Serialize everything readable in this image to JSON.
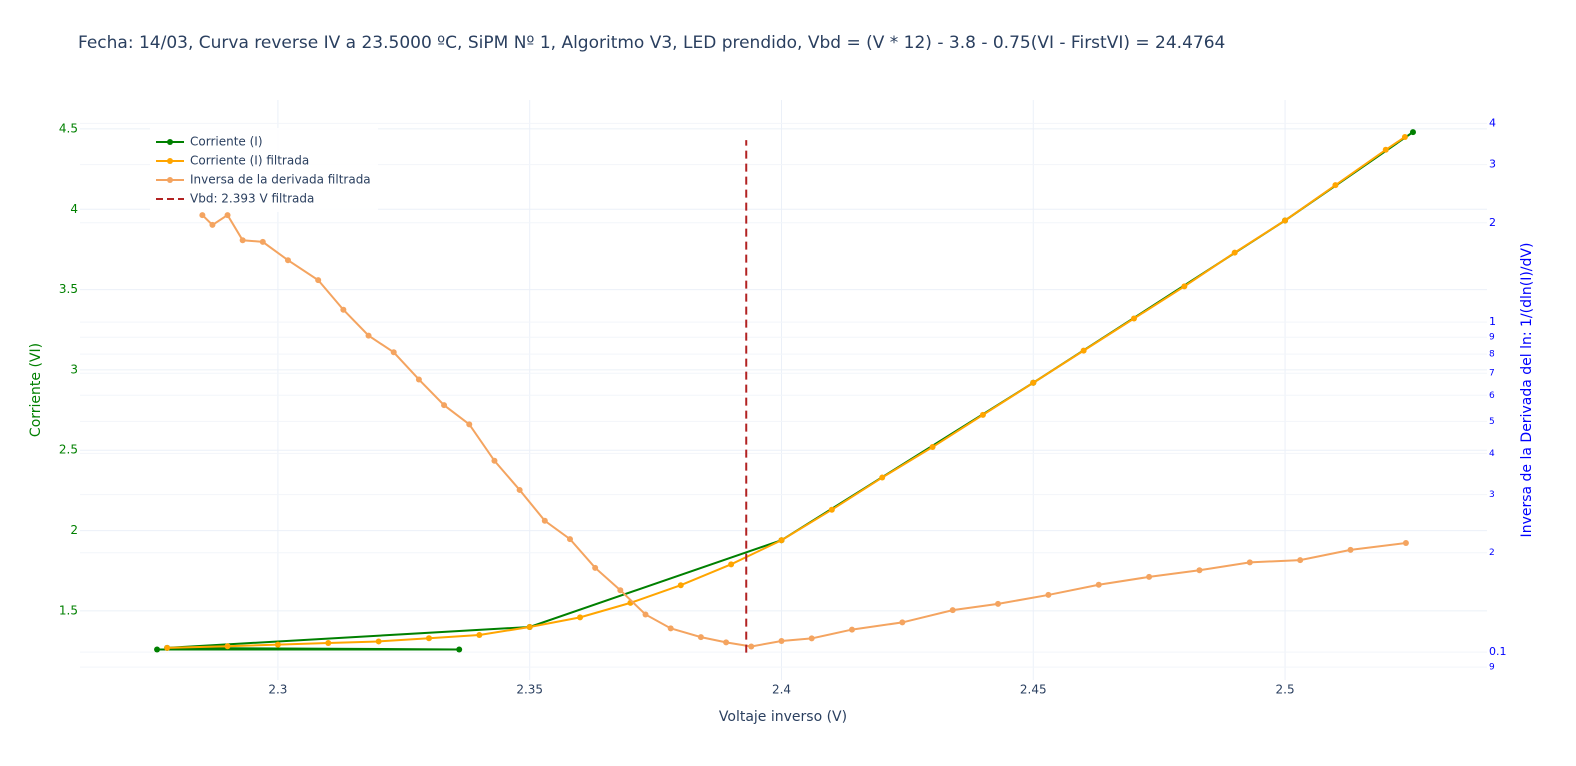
{
  "chart_data": {
    "type": "line",
    "title": "Fecha: 14/03, Curva reverse IV a 23.5000 ºC, SiPM Nº 1, Algoritmo V3, LED prendido,  Vbd = (V * 12) - 3.8 - 0.75(VI - FirstVI) = 24.4764",
    "x_label": "Voltaje inverso (V)",
    "y_label": "Corriente (VI)",
    "y2_label": "Inversa de la Derivada del ln: 1/(dln(I)/dV)",
    "xlim": [
      2.2607,
      2.5401
    ],
    "xticks": [
      2.3,
      2.35,
      2.4,
      2.45,
      2.5
    ],
    "ylim": [
      1.07,
      4.68
    ],
    "yticks": [
      1.5,
      2,
      2.5,
      3,
      3.5,
      4,
      4.5
    ],
    "y2lim": [
      0.0823,
      4.71
    ],
    "y2log": true,
    "y2ticks": [
      {
        "value": 0.09,
        "label": "9"
      },
      0.1,
      2,
      3,
      4,
      {
        "value": 0.5,
        "label": "5"
      },
      {
        "value": 0.6,
        "label": "6"
      },
      {
        "value": 0.7,
        "label": "7"
      },
      {
        "value": 0.8,
        "label": "8"
      },
      {
        "value": 0.9,
        "label": "9"
      },
      1,
      {
        "value": 0.2,
        "label": "2"
      },
      {
        "value": 0.3,
        "label": "3"
      },
      {
        "value": 0.4,
        "label": "4"
      }
    ],
    "grid": true,
    "legend_position": "upper-left",
    "series": [
      {
        "name": "Corriente (I)",
        "color": "#008000",
        "mode": "lines+markers",
        "x": [
          2.276,
          2.336,
          2.278,
          2.35,
          2.4,
          2.45,
          2.5,
          2.5254
        ],
        "values": [
          1.26,
          1.26,
          1.27,
          1.4,
          1.94,
          2.92,
          3.93,
          4.48
        ]
      },
      {
        "name": "Corriente (I) filtrada",
        "color": "#ffa500",
        "mode": "lines+markers",
        "x": [
          2.278,
          2.29,
          2.3,
          2.31,
          2.32,
          2.33,
          2.34,
          2.35,
          2.36,
          2.37,
          2.38,
          2.39,
          2.4,
          2.41,
          2.42,
          2.43,
          2.44,
          2.45,
          2.46,
          2.47,
          2.48,
          2.49,
          2.5,
          2.51,
          2.52,
          2.5238
        ],
        "values": [
          1.27,
          1.28,
          1.29,
          1.3,
          1.31,
          1.33,
          1.35,
          1.4,
          1.46,
          1.55,
          1.66,
          1.79,
          1.94,
          2.13,
          2.33,
          2.52,
          2.72,
          2.92,
          3.12,
          3.32,
          3.52,
          3.73,
          3.93,
          4.15,
          4.37,
          4.45
        ]
      },
      {
        "name": "Inversa de la derivada filtrada",
        "color": "#f4a460",
        "mode": "lines+markers",
        "axis": "y2",
        "x": [
          2.285,
          2.287,
          2.29,
          2.293,
          2.297,
          2.302,
          2.308,
          2.313,
          2.318,
          2.323,
          2.328,
          2.333,
          2.338,
          2.343,
          2.348,
          2.353,
          2.358,
          2.363,
          2.368,
          2.373,
          2.378,
          2.384,
          2.389,
          2.394,
          2.4,
          2.406,
          2.414,
          2.424,
          2.434,
          2.443,
          2.453,
          2.463,
          2.473,
          2.483,
          2.493,
          2.503,
          2.513,
          2.524
        ],
        "values": [
          2.11,
          1.97,
          2.11,
          1.77,
          1.75,
          1.54,
          1.34,
          1.09,
          0.91,
          0.81,
          0.67,
          0.56,
          0.49,
          0.38,
          0.31,
          0.25,
          0.22,
          0.18,
          0.154,
          0.13,
          0.118,
          0.111,
          0.107,
          0.104,
          0.108,
          0.11,
          0.117,
          0.123,
          0.134,
          0.14,
          0.149,
          0.16,
          0.169,
          0.177,
          0.187,
          0.19,
          0.204,
          0.214
        ]
      },
      {
        "name": "Vbd: 2.393 V filtrada",
        "color": "#b22222",
        "mode": "lines",
        "dash": true,
        "x": [
          2.393,
          2.393
        ],
        "values": [
          1.24,
          4.43
        ]
      }
    ]
  }
}
